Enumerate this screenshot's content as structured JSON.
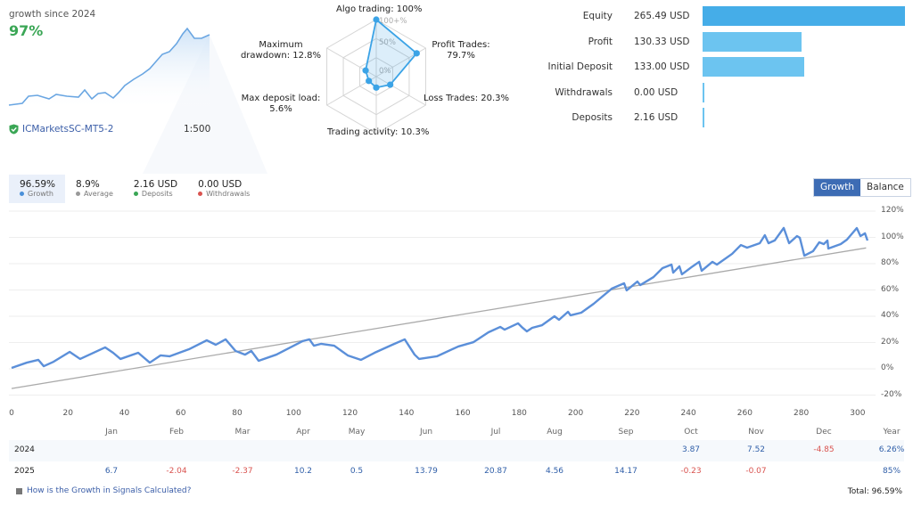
{
  "header": {
    "growth_label": "growth since 2024",
    "growth_value": "97%",
    "broker": "ICMarketsSC-MT5-2",
    "leverage": "1:500",
    "icon": "shield-check-icon"
  },
  "radar": {
    "ring_labels": [
      "100+%",
      "50%",
      "0%"
    ],
    "axes": [
      {
        "label": "Algo trading: 100%",
        "value": 100
      },
      {
        "label": "Profit Trades: 79.7%",
        "value": 79.7
      },
      {
        "label": "Loss Trades: 20.3%",
        "value": 20.3
      },
      {
        "label": "Trading activity: 10.3%",
        "value": 10.3
      },
      {
        "label": "Max deposit load: 5.6%",
        "value": 5.6
      },
      {
        "label": "Maximum drawdown: 12.8%",
        "value": 12.8
      }
    ],
    "color": "#3ba3e6"
  },
  "stats": [
    {
      "name": "Equity",
      "value": "265.49 USD",
      "amount": 265.49,
      "color": "#45ade8"
    },
    {
      "name": "Profit",
      "value": "130.33 USD",
      "amount": 130.33,
      "color": "#6cc4f0"
    },
    {
      "name": "Initial Deposit",
      "value": "133.00 USD",
      "amount": 133.0,
      "color": "#6cc4f0"
    },
    {
      "name": "Withdrawals",
      "value": "0.00 USD",
      "amount": 0,
      "color": "#6cc4f0"
    },
    {
      "name": "Deposits",
      "value": "2.16 USD",
      "amount": 2.16,
      "color": "#6cc4f0"
    }
  ],
  "summary": [
    {
      "value": "96.59%",
      "label": "Growth",
      "color": "#4a90d9"
    },
    {
      "value": "8.9%",
      "label": "Average",
      "color": "#999999"
    },
    {
      "value": "2.16 USD",
      "label": "Deposits",
      "color": "#3aa655"
    },
    {
      "value": "0.00 USD",
      "label": "Withdrawals",
      "color": "#d9534f"
    }
  ],
  "toggle": {
    "growth": "Growth",
    "balance": "Balance"
  },
  "chart_data": {
    "type": "line",
    "xlim": [
      0,
      305
    ],
    "ylim": [
      -20,
      120
    ],
    "x_ticks": [
      0,
      20,
      40,
      60,
      80,
      100,
      120,
      140,
      160,
      180,
      200,
      220,
      240,
      260,
      280,
      300
    ],
    "y_ticks": [
      "120%",
      "100%",
      "80%",
      "60%",
      "40%",
      "20%",
      "0%",
      "-20%"
    ],
    "y_tick_values": [
      120,
      100,
      80,
      60,
      40,
      20,
      0,
      -20
    ],
    "grid": true,
    "series": [
      {
        "color": "#5b8fd9",
        "points": [
          [
            0,
            0.7
          ],
          [
            5.4,
            4.7
          ],
          [
            9.5,
            6.8
          ],
          [
            11.4,
            2
          ],
          [
            14.9,
            5.4
          ],
          [
            20.6,
            12.9
          ],
          [
            24.3,
            7.5
          ],
          [
            33.2,
            16.3
          ],
          [
            36,
            12.2
          ],
          [
            38.6,
            7.5
          ],
          [
            44.9,
            12.2
          ],
          [
            49,
            4.7
          ],
          [
            52.8,
            10.2
          ],
          [
            56,
            9.5
          ],
          [
            62.9,
            14.9
          ],
          [
            69.2,
            21.7
          ],
          [
            72.4,
            18.3
          ],
          [
            75.9,
            22.4
          ],
          [
            79.4,
            13.6
          ],
          [
            82.8,
            10.8
          ],
          [
            85,
            13.6
          ],
          [
            87.6,
            6.1
          ],
          [
            93.9,
            10.8
          ],
          [
            103.1,
            21
          ],
          [
            105.6,
            22.4
          ],
          [
            107.2,
            17.6
          ],
          [
            109.7,
            19
          ],
          [
            114.4,
            17.6
          ],
          [
            119.2,
            10.2
          ],
          [
            123.9,
            6.8
          ],
          [
            128.7,
            12.2
          ],
          [
            135,
            18.3
          ],
          [
            139.4,
            22.4
          ],
          [
            142.9,
            10.8
          ],
          [
            144.5,
            7.5
          ],
          [
            150.8,
            9.5
          ],
          [
            158.4,
            17
          ],
          [
            163.8,
            20.3
          ],
          [
            169.1,
            27.8
          ],
          [
            173.3,
            31.9
          ],
          [
            174.8,
            29.8
          ],
          [
            179.6,
            34.6
          ],
          [
            181.2,
            31.2
          ],
          [
            182.7,
            28.5
          ],
          [
            184.6,
            31.2
          ],
          [
            188.1,
            33.2
          ],
          [
            192.5,
            40
          ],
          [
            194.1,
            37.3
          ],
          [
            197.3,
            43.4
          ],
          [
            198.2,
            40.7
          ],
          [
            202,
            42.7
          ],
          [
            206.4,
            49.5
          ],
          [
            212.8,
            61
          ],
          [
            217.2,
            65.1
          ],
          [
            218.1,
            59.7
          ],
          [
            221.9,
            66.4
          ],
          [
            222.9,
            63.7
          ],
          [
            227.6,
            69.8
          ],
          [
            230.8,
            76.6
          ],
          [
            234,
            79.3
          ],
          [
            234.6,
            73.2
          ],
          [
            236.8,
            78
          ],
          [
            237.7,
            71.9
          ],
          [
            241.5,
            78
          ],
          [
            243.8,
            81.4
          ],
          [
            244.7,
            74.6
          ],
          [
            248.5,
            81.4
          ],
          [
            250.1,
            79.3
          ],
          [
            255.5,
            87.5
          ],
          [
            258.6,
            94.2
          ],
          [
            260.8,
            92.2
          ],
          [
            265.3,
            95.6
          ],
          [
            267.1,
            101.7
          ],
          [
            268.4,
            95.6
          ],
          [
            270.6,
            97.7
          ],
          [
            273.8,
            107.2
          ],
          [
            275.7,
            95.6
          ],
          [
            278.5,
            101
          ],
          [
            279.5,
            99.7
          ],
          [
            281.1,
            86.1
          ],
          [
            284.2,
            89.5
          ],
          [
            286.4,
            96.3
          ],
          [
            288,
            94.9
          ],
          [
            289.3,
            97.6
          ],
          [
            289.6,
            91.5
          ],
          [
            294,
            94.9
          ],
          [
            296.2,
            98.3
          ],
          [
            299.7,
            107.1
          ],
          [
            301,
            101
          ],
          [
            302.6,
            103.1
          ],
          [
            303.5,
            97.6
          ]
        ]
      },
      {
        "color": "#aaaaaa",
        "points": [
          [
            0,
            -15
          ],
          [
            303,
            92
          ]
        ]
      }
    ]
  },
  "table": {
    "months": [
      "Jan",
      "Feb",
      "Mar",
      "Apr",
      "May",
      "Jun",
      "Jul",
      "Aug",
      "Sep",
      "Oct",
      "Nov",
      "Dec",
      "Year"
    ],
    "rows": [
      {
        "year": "2024",
        "values": [
          "",
          "",
          "",
          "",
          "",
          "",
          "",
          "",
          "",
          "3.87",
          "7.52",
          "-4.85",
          "6.26%"
        ]
      },
      {
        "year": "2025",
        "values": [
          "6.7",
          "-2.04",
          "-2.37",
          "10.2",
          "0.5",
          "13.79",
          "20.87",
          "4.56",
          "14.17",
          "-0.23",
          "-0.07",
          "",
          "85%"
        ]
      }
    ]
  },
  "footer": {
    "help_link": "How is the Growth in Signals Calculated?",
    "total": "Total: 96.59%"
  }
}
